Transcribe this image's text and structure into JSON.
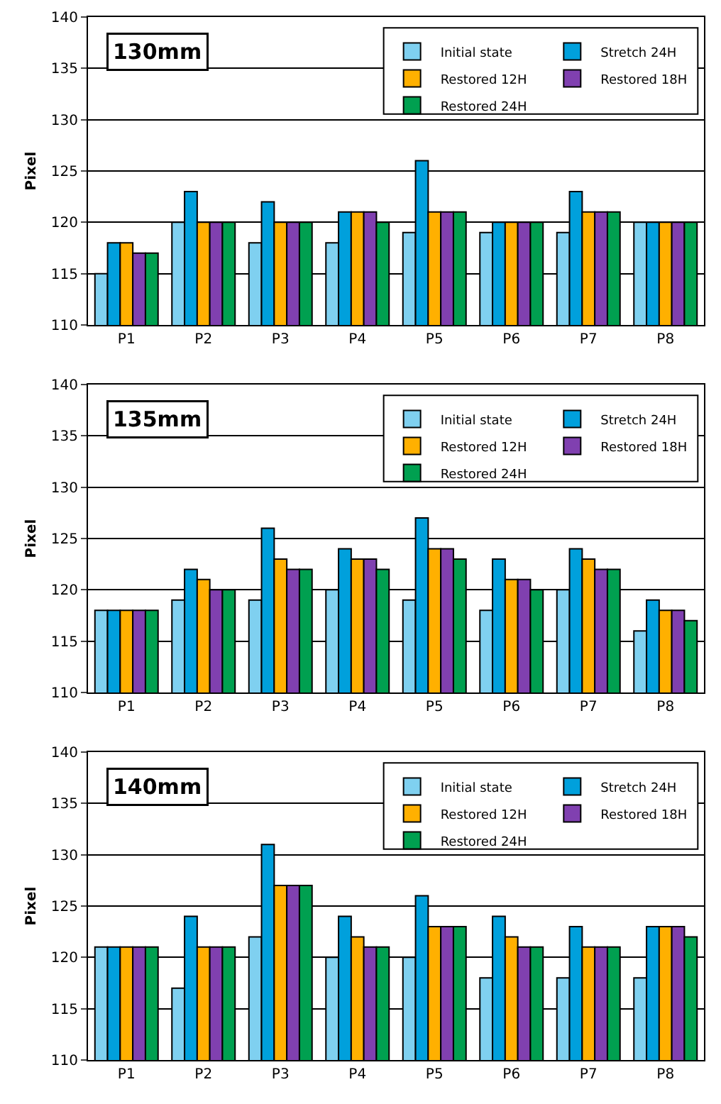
{
  "chart_data": [
    {
      "type": "bar",
      "annotations": [
        "130mm"
      ],
      "ylabel": "Pixel",
      "categories": [
        "P1",
        "P2",
        "P3",
        "P4",
        "P5",
        "P6",
        "P7",
        "P8"
      ],
      "ylim": [
        110,
        140
      ],
      "yticks": [
        110,
        115,
        120,
        125,
        130,
        135,
        140
      ],
      "grid": "y",
      "legend": "top right",
      "series": [
        {
          "name": "Initial state",
          "color": "#7fd0f0",
          "values": [
            115,
            120,
            118,
            118,
            119,
            119,
            119,
            120
          ]
        },
        {
          "name": "Stretch 24H",
          "color": "#00a0dc",
          "values": [
            118,
            123,
            122,
            121,
            126,
            120,
            123,
            120
          ]
        },
        {
          "name": "Restored 12H",
          "color": "#ffb000",
          "values": [
            118,
            120,
            120,
            121,
            121,
            120,
            121,
            120
          ]
        },
        {
          "name": "Restored 18H",
          "color": "#8040b0",
          "values": [
            117,
            120,
            120,
            121,
            121,
            120,
            121,
            120
          ]
        },
        {
          "name": "Restored 24H",
          "color": "#00a050",
          "values": [
            117,
            120,
            120,
            120,
            121,
            120,
            121,
            120
          ]
        }
      ]
    },
    {
      "type": "bar",
      "annotations": [
        "135mm"
      ],
      "ylabel": "Pixel",
      "categories": [
        "P1",
        "P2",
        "P3",
        "P4",
        "P5",
        "P6",
        "P7",
        "P8"
      ],
      "ylim": [
        110,
        140
      ],
      "yticks": [
        110,
        115,
        120,
        125,
        130,
        135,
        140
      ],
      "grid": "y",
      "legend": "top right",
      "series": [
        {
          "name": "Initial state",
          "color": "#7fd0f0",
          "values": [
            118,
            119,
            119,
            120,
            119,
            118,
            120,
            116
          ]
        },
        {
          "name": "Stretch 24H",
          "color": "#00a0dc",
          "values": [
            118,
            122,
            126,
            124,
            127,
            123,
            124,
            119
          ]
        },
        {
          "name": "Restored 12H",
          "color": "#ffb000",
          "values": [
            118,
            121,
            123,
            123,
            124,
            121,
            123,
            118
          ]
        },
        {
          "name": "Restored 18H",
          "color": "#8040b0",
          "values": [
            118,
            120,
            122,
            123,
            124,
            121,
            122,
            118
          ]
        },
        {
          "name": "Restored 24H",
          "color": "#00a050",
          "values": [
            118,
            120,
            122,
            122,
            123,
            120,
            122,
            117
          ]
        }
      ]
    },
    {
      "type": "bar",
      "annotations": [
        "140mm"
      ],
      "ylabel": "Pixel",
      "categories": [
        "P1",
        "P2",
        "P3",
        "P4",
        "P5",
        "P6",
        "P7",
        "P8"
      ],
      "ylim": [
        110,
        140
      ],
      "yticks": [
        110,
        115,
        120,
        125,
        130,
        135,
        140
      ],
      "grid": "y",
      "legend": "top right",
      "series": [
        {
          "name": "Initial state",
          "color": "#7fd0f0",
          "values": [
            121,
            117,
            122,
            120,
            120,
            118,
            118,
            118
          ]
        },
        {
          "name": "Stretch 24H",
          "color": "#00a0dc",
          "values": [
            121,
            124,
            131,
            124,
            126,
            124,
            123,
            123
          ]
        },
        {
          "name": "Restored 12H",
          "color": "#ffb000",
          "values": [
            121,
            121,
            127,
            122,
            123,
            122,
            121,
            123
          ]
        },
        {
          "name": "Restored 18H",
          "color": "#8040b0",
          "values": [
            121,
            121,
            127,
            121,
            123,
            121,
            121,
            123
          ]
        },
        {
          "name": "Restored 24H",
          "color": "#00a050",
          "values": [
            121,
            121,
            127,
            121,
            123,
            121,
            121,
            122
          ]
        }
      ]
    }
  ]
}
